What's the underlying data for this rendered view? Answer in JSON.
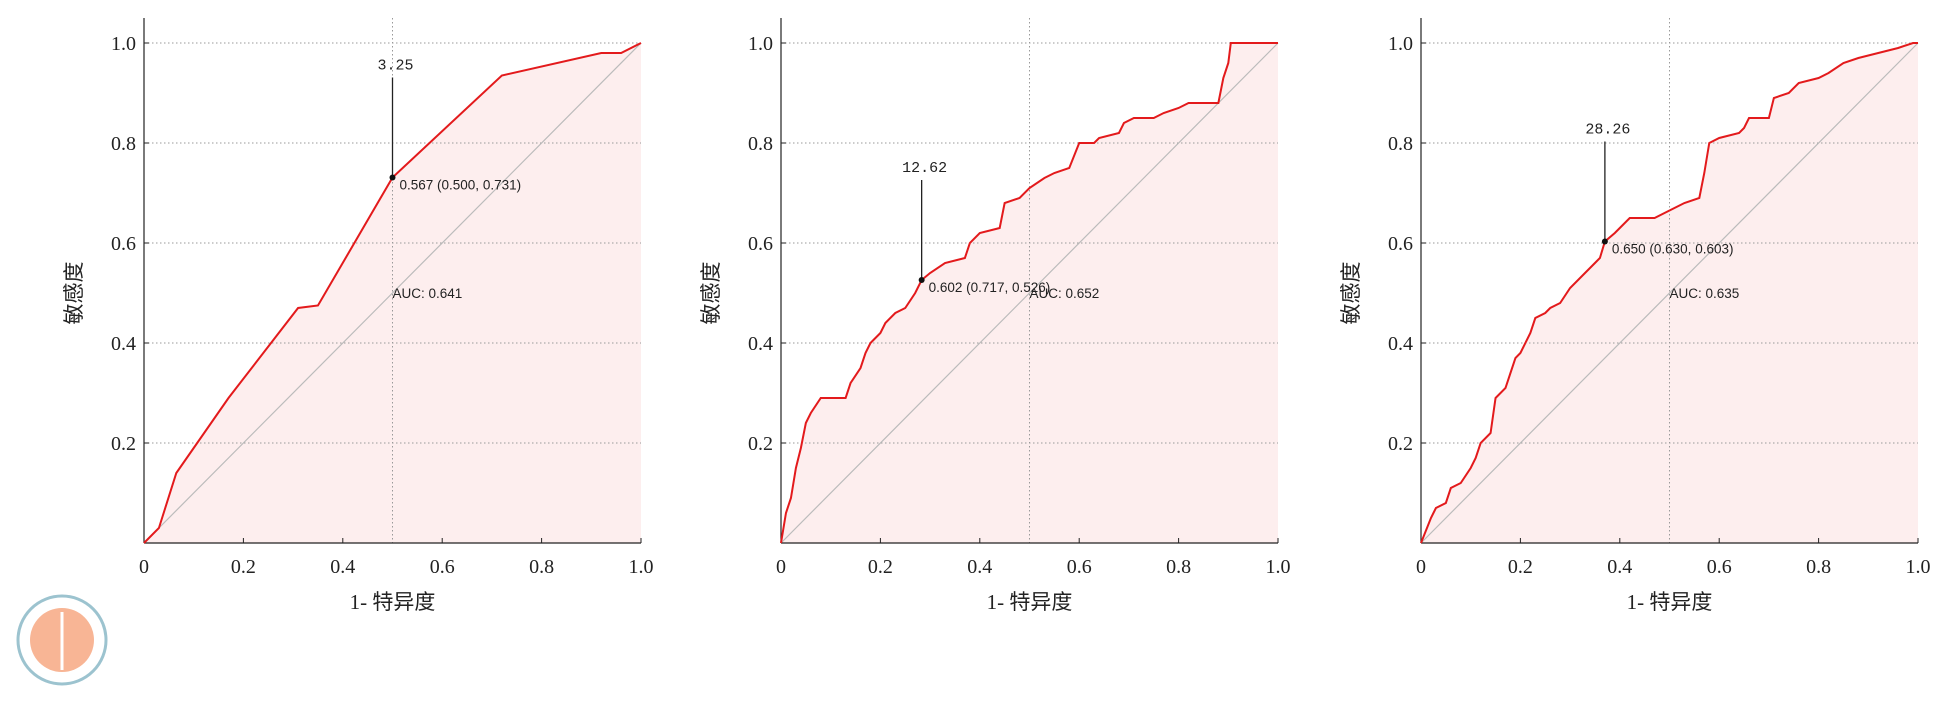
{
  "chart_data": [
    {
      "type": "line",
      "x_label": "1- 特异度",
      "y_label": "敏感度",
      "xlim": [
        0,
        1
      ],
      "ylim": [
        0,
        1
      ],
      "xticks": [
        0,
        0.2,
        0.4,
        0.6,
        0.8,
        {
          "value": 1,
          "label": "1.0"
        }
      ],
      "yticks": [
        0.2,
        0.4,
        0.6,
        0.8,
        {
          "value": 1,
          "label": "1.0"
        }
      ],
      "grid": true,
      "color": "#e31a1c",
      "fill_color": "#fdeeee",
      "x": [
        0,
        0.03,
        0.065,
        0.17,
        0.31,
        0.35,
        0.5,
        0.72,
        0.92,
        0.96,
        1
      ],
      "values": [
        0,
        0.03,
        0.14,
        0.29,
        0.47,
        0.475,
        0.731,
        0.935,
        0.98,
        0.98,
        1
      ],
      "cutoff_label": "3.25",
      "point_label": "0.567 (0.500, 0.731)",
      "point_x": 0.5,
      "point_y": 0.731,
      "auc_label": "AUC: 0.641"
    },
    {
      "type": "line",
      "x_label": "1- 特异度",
      "y_label": "敏感度",
      "xlim": [
        0,
        1
      ],
      "ylim": [
        0,
        1
      ],
      "xticks": [
        0,
        0.2,
        0.4,
        0.6,
        0.8,
        {
          "value": 1,
          "label": "1.0"
        }
      ],
      "yticks": [
        0.2,
        0.4,
        0.6,
        0.8,
        {
          "value": 1,
          "label": "1.0"
        }
      ],
      "grid": true,
      "color": "#e31a1c",
      "fill_color": "#fdeeee",
      "x": [
        0,
        0.01,
        0.02,
        0.03,
        0.04,
        0.05,
        0.06,
        0.08,
        0.13,
        0.14,
        0.16,
        0.17,
        0.18,
        0.2,
        0.21,
        0.23,
        0.25,
        0.27,
        0.283,
        0.3,
        0.33,
        0.37,
        0.38,
        0.4,
        0.44,
        0.45,
        0.48,
        0.5,
        0.53,
        0.55,
        0.58,
        0.6,
        0.63,
        0.64,
        0.68,
        0.69,
        0.71,
        0.75,
        0.77,
        0.8,
        0.82,
        0.88,
        0.89,
        0.9,
        0.905,
        1
      ],
      "values": [
        0,
        0.06,
        0.09,
        0.15,
        0.19,
        0.24,
        0.26,
        0.29,
        0.29,
        0.32,
        0.35,
        0.38,
        0.4,
        0.42,
        0.44,
        0.46,
        0.47,
        0.5,
        0.526,
        0.54,
        0.56,
        0.57,
        0.6,
        0.62,
        0.63,
        0.68,
        0.69,
        0.71,
        0.73,
        0.74,
        0.75,
        0.8,
        0.8,
        0.81,
        0.82,
        0.84,
        0.85,
        0.85,
        0.86,
        0.87,
        0.88,
        0.88,
        0.93,
        0.96,
        1,
        1
      ],
      "cutoff_label": "12.62",
      "point_label": "0.602 (0.717, 0.526)",
      "point_x": 0.283,
      "point_y": 0.526,
      "auc_label": "AUC: 0.652"
    },
    {
      "type": "line",
      "x_label": "1- 特异度",
      "y_label": "敏感度",
      "xlim": [
        0,
        1
      ],
      "ylim": [
        0,
        1
      ],
      "xticks": [
        0,
        0.2,
        0.4,
        0.6,
        0.8,
        {
          "value": 1,
          "label": "1.0"
        }
      ],
      "yticks": [
        0.2,
        0.4,
        0.6,
        0.8,
        {
          "value": 1,
          "label": "1.0"
        }
      ],
      "grid": true,
      "color": "#e31a1c",
      "fill_color": "#fdeeee",
      "x": [
        0,
        0.02,
        0.025,
        0.03,
        0.05,
        0.06,
        0.08,
        0.1,
        0.11,
        0.12,
        0.14,
        0.15,
        0.16,
        0.17,
        0.18,
        0.19,
        0.2,
        0.22,
        0.23,
        0.25,
        0.26,
        0.28,
        0.3,
        0.33,
        0.35,
        0.36,
        0.37,
        0.39,
        0.4,
        0.42,
        0.47,
        0.49,
        0.51,
        0.53,
        0.56,
        0.57,
        0.58,
        0.6,
        0.64,
        0.65,
        0.66,
        0.7,
        0.71,
        0.74,
        0.76,
        0.8,
        0.82,
        0.85,
        0.88,
        0.92,
        0.96,
        0.99,
        1
      ],
      "values": [
        0,
        0.05,
        0.06,
        0.07,
        0.08,
        0.11,
        0.12,
        0.15,
        0.17,
        0.2,
        0.22,
        0.29,
        0.3,
        0.31,
        0.34,
        0.37,
        0.38,
        0.42,
        0.45,
        0.46,
        0.47,
        0.48,
        0.51,
        0.54,
        0.56,
        0.57,
        0.603,
        0.62,
        0.63,
        0.65,
        0.65,
        0.66,
        0.67,
        0.68,
        0.69,
        0.74,
        0.8,
        0.81,
        0.82,
        0.83,
        0.85,
        0.85,
        0.89,
        0.9,
        0.92,
        0.93,
        0.94,
        0.96,
        0.97,
        0.98,
        0.99,
        1,
        1
      ],
      "cutoff_label": "28.26",
      "point_label": "0.650 (0.630, 0.603)",
      "point_x": 0.37,
      "point_y": 0.603,
      "auc_label": "AUC: 0.635"
    }
  ]
}
